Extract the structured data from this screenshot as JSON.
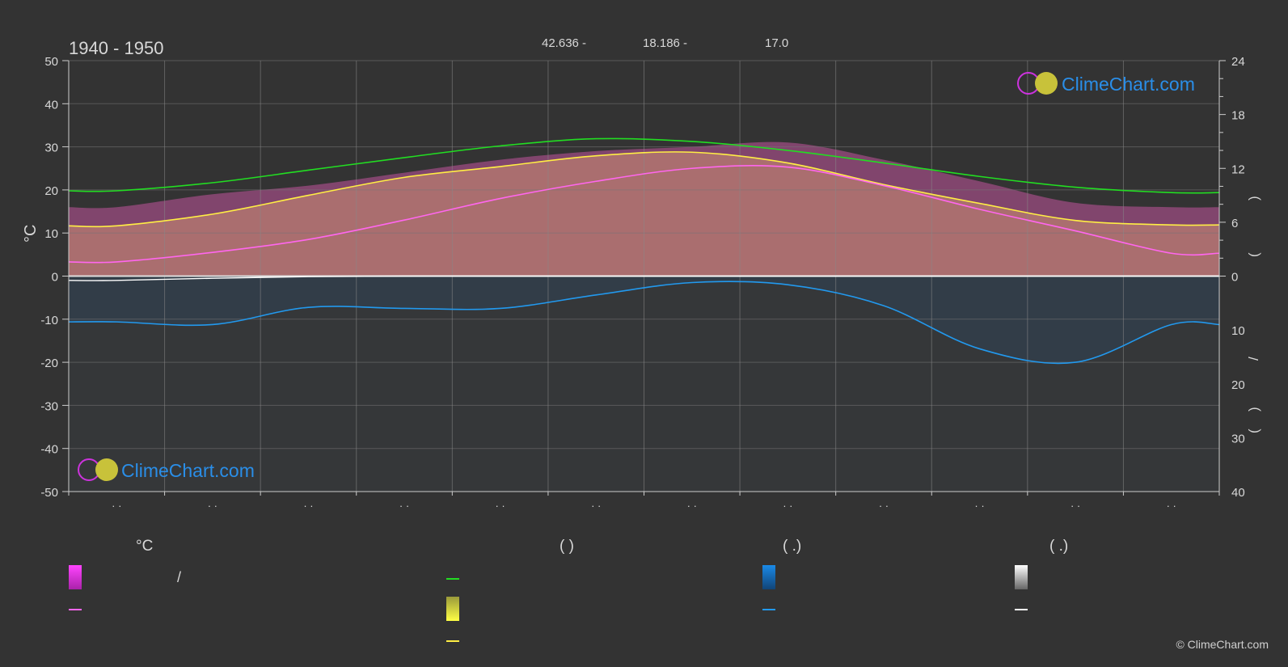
{
  "header": {
    "period": "1940 - 1950",
    "stat_1": "42.636 -",
    "stat_2": "18.186 -",
    "stat_3": "17.0"
  },
  "logo": {
    "text": "ClimeChart.com"
  },
  "copyright": "© ClimeChart.com",
  "colors": {
    "background": "#333333",
    "daylight": "#22dd22",
    "sunshine": "#ffee44",
    "sunshine_fill": "#9a9a3a",
    "temp_mean": "#ff66ee",
    "temp_fill": "#e05ab4",
    "precip": "#2299ee",
    "snow": "#ffffff",
    "logo_text": "#2a8ee8"
  },
  "legend": {
    "col1_header": "°C",
    "col1_sep": "/",
    "col2_header": "(          )",
    "col3_header": "(   .)",
    "col4_header": "(   .)"
  },
  "right_axis_labels": [
    ")",
    "(",
    "/",
    ")",
    "("
  ],
  "chart_data": {
    "type": "area",
    "x_months": [
      1,
      2,
      3,
      4,
      5,
      6,
      7,
      8,
      9,
      10,
      11,
      12
    ],
    "x_tick_labels": [
      "· ·",
      "· ·",
      "· ·",
      "· ·",
      "· ·",
      "· ·",
      "· ·",
      "· ·",
      "· ·",
      "· ·",
      "· ·",
      "· ·"
    ],
    "ylabel_left": "°C",
    "ylim_left": [
      -50,
      50
    ],
    "yticks_left": [
      50,
      40,
      30,
      20,
      10,
      0,
      -10,
      -20,
      -30,
      -40,
      -50
    ],
    "ylim_right_top": [
      0,
      24
    ],
    "yticks_right_top": [
      24,
      18,
      12,
      6,
      0
    ],
    "ylim_right_bottom": [
      0,
      40
    ],
    "yticks_right_bottom": [
      10,
      20,
      30,
      40
    ],
    "grid": true,
    "series": [
      {
        "key": "daylight_hours",
        "axis": "right_top",
        "values": [
          9.5,
          10.4,
          11.8,
          13.2,
          14.5,
          15.3,
          15.0,
          14.0,
          12.6,
          11.1,
          9.9,
          9.3
        ]
      },
      {
        "key": "sunshine_hours",
        "axis": "right_top",
        "values": [
          5.6,
          6.9,
          9.0,
          11.0,
          12.2,
          13.4,
          13.8,
          12.6,
          10.2,
          8.1,
          6.2,
          5.7
        ]
      },
      {
        "key": "temp_mean",
        "axis": "left",
        "values": [
          3.3,
          5.5,
          8.5,
          13.0,
          18.0,
          22.0,
          25.0,
          25.3,
          21.0,
          15.5,
          10.5,
          5.3
        ]
      },
      {
        "key": "temp_max_band",
        "axis": "left",
        "values": [
          16,
          19,
          21,
          24,
          27,
          29,
          30,
          31,
          27,
          22,
          17,
          16
        ]
      },
      {
        "key": "precip_mm",
        "axis": "right_bottom",
        "values": [
          8.5,
          9.0,
          5.8,
          6.0,
          6.0,
          3.5,
          1.2,
          1.6,
          5.5,
          13.5,
          16.0,
          9.0
        ]
      },
      {
        "key": "snow_mm",
        "axis": "right_bottom",
        "values": [
          0.8,
          0.4,
          0.1,
          0,
          0,
          0,
          0,
          0,
          0,
          0,
          0,
          0
        ]
      }
    ]
  }
}
